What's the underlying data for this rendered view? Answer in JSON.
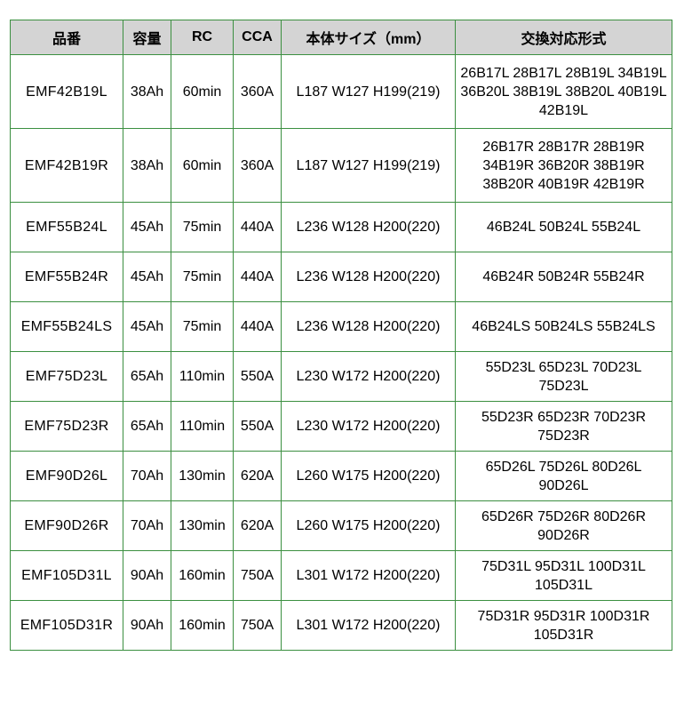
{
  "colors": {
    "border_green": "#3b8f40",
    "header_background": "#d4d4d4",
    "cell_background": "#ffffff",
    "text": "#000000"
  },
  "table": {
    "headers": [
      "品番",
      "容量",
      "RC",
      "CCA",
      "本体サイズ（mm）",
      "交換対応形式"
    ],
    "rows": [
      {
        "part": "EMF42B19L",
        "capacity": "38Ah",
        "rc": "60min",
        "cca": "360A",
        "size": "L187 W127 H199(219)",
        "compatible": "26B17L 28B17L 28B19L 34B19L 36B20L 38B19L 38B20L 40B19L 42B19L"
      },
      {
        "part": "EMF42B19R",
        "capacity": "38Ah",
        "rc": "60min",
        "cca": "360A",
        "size": "L187 W127 H199(219)",
        "compatible": "26B17R 28B17R 28B19R 34B19R 36B20R 38B19R 38B20R 40B19R 42B19R"
      },
      {
        "part": "EMF55B24L",
        "capacity": "45Ah",
        "rc": "75min",
        "cca": "440A",
        "size": "L236 W128 H200(220)",
        "compatible": "46B24L 50B24L 55B24L"
      },
      {
        "part": "EMF55B24R",
        "capacity": "45Ah",
        "rc": "75min",
        "cca": "440A",
        "size": "L236 W128 H200(220)",
        "compatible": "46B24R 50B24R 55B24R"
      },
      {
        "part": "EMF55B24LS",
        "capacity": "45Ah",
        "rc": "75min",
        "cca": "440A",
        "size": "L236 W128 H200(220)",
        "compatible": "46B24LS 50B24LS 55B24LS"
      },
      {
        "part": "EMF75D23L",
        "capacity": "65Ah",
        "rc": "110min",
        "cca": "550A",
        "size": "L230 W172 H200(220)",
        "compatible": "55D23L 65D23L 70D23L 75D23L"
      },
      {
        "part": "EMF75D23R",
        "capacity": "65Ah",
        "rc": "110min",
        "cca": "550A",
        "size": "L230 W172 H200(220)",
        "compatible": "55D23R 65D23R 70D23R 75D23R"
      },
      {
        "part": "EMF90D26L",
        "capacity": "70Ah",
        "rc": "130min",
        "cca": "620A",
        "size": "L260 W175 H200(220)",
        "compatible": "65D26L 75D26L 80D26L 90D26L"
      },
      {
        "part": "EMF90D26R",
        "capacity": "70Ah",
        "rc": "130min",
        "cca": "620A",
        "size": "L260 W175 H200(220)",
        "compatible": "65D26R 75D26R 80D26R 90D26R"
      },
      {
        "part": "EMF105D31L",
        "capacity": "90Ah",
        "rc": "160min",
        "cca": "750A",
        "size": "L301 W172 H200(220)",
        "compatible": "75D31L 95D31L 100D31L 105D31L"
      },
      {
        "part": "EMF105D31R",
        "capacity": "90Ah",
        "rc": "160min",
        "cca": "750A",
        "size": "L301 W172 H200(220)",
        "compatible": "75D31R 95D31R 100D31R 105D31R"
      }
    ]
  }
}
